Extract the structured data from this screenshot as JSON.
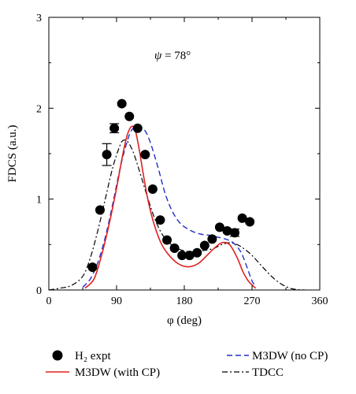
{
  "chart_data": {
    "type": "line",
    "xlabel": "φ (deg)",
    "ylabel": "FDCS (a.u.)",
    "xlim": [
      0,
      360
    ],
    "ylim": [
      0,
      3
    ],
    "xticks": [
      0,
      90,
      180,
      270,
      360
    ],
    "yticks": [
      0,
      1,
      2,
      3
    ],
    "xtick_labels": [
      "0",
      "90",
      "180",
      "270",
      "360"
    ],
    "ytick_labels": [
      "0",
      "1",
      "2",
      "3"
    ],
    "grid": false,
    "annotation": {
      "symbol": "ψ",
      "text": " = 78°",
      "x": 157,
      "y": 2.58
    },
    "legend_placement": "bottom",
    "points": {
      "name": "H₂ expt",
      "x": [
        58,
        68,
        77,
        87,
        97,
        107,
        118,
        128,
        138,
        148,
        157,
        167,
        177,
        187,
        197,
        207,
        217,
        227,
        237,
        247,
        257,
        267
      ],
      "y": [
        0.25,
        0.88,
        1.49,
        1.78,
        2.05,
        1.91,
        1.78,
        1.49,
        1.11,
        0.77,
        0.55,
        0.46,
        0.38,
        0.38,
        0.41,
        0.49,
        0.56,
        0.69,
        0.65,
        0.63,
        0.79,
        0.75
      ],
      "yerr": [
        0,
        0,
        0.12,
        0.05,
        0,
        0,
        0,
        0,
        0,
        0,
        0,
        0,
        0,
        0,
        0,
        0,
        0,
        0,
        0,
        0.04,
        0,
        0
      ],
      "color": "#000000"
    },
    "series": [
      {
        "name": "M3DW (with CP)",
        "style": "solid",
        "color": "#e02020",
        "x": [
          48,
          60,
          70,
          80,
          90,
          98,
          104,
          110,
          115,
          120,
          126,
          132,
          140,
          150,
          160,
          170,
          180,
          190,
          200,
          210,
          220,
          230,
          240,
          250,
          258,
          265,
          272,
          275
        ],
        "y": [
          0.02,
          0.12,
          0.38,
          0.72,
          1.12,
          1.48,
          1.7,
          1.8,
          1.75,
          1.55,
          1.25,
          0.98,
          0.72,
          0.5,
          0.38,
          0.3,
          0.26,
          0.26,
          0.3,
          0.38,
          0.46,
          0.52,
          0.5,
          0.36,
          0.2,
          0.1,
          0.04,
          0.02
        ]
      },
      {
        "name": "M3DW (no CP)",
        "style": "dashed",
        "color": "#2030c8",
        "x": [
          45,
          55,
          65,
          75,
          85,
          95,
          105,
          112,
          120,
          128,
          135,
          145,
          155,
          165,
          175,
          185,
          195,
          205,
          215,
          225,
          235,
          245,
          255,
          262,
          270,
          275
        ],
        "y": [
          0.03,
          0.12,
          0.3,
          0.58,
          0.95,
          1.35,
          1.66,
          1.78,
          1.8,
          1.75,
          1.62,
          1.35,
          1.05,
          0.85,
          0.73,
          0.67,
          0.63,
          0.61,
          0.6,
          0.58,
          0.56,
          0.52,
          0.42,
          0.28,
          0.1,
          0.04
        ]
      },
      {
        "name": "TDCC",
        "style": "dashdot",
        "color": "#000000",
        "x": [
          0,
          15,
          30,
          45,
          55,
          65,
          75,
          85,
          95,
          100,
          105,
          112,
          120,
          130,
          140,
          150,
          160,
          170,
          180,
          190,
          200,
          210,
          220,
          230,
          240,
          250,
          260,
          270,
          280,
          290,
          300,
          310,
          320,
          330,
          340
        ],
        "y": [
          0.0,
          0.02,
          0.05,
          0.15,
          0.35,
          0.65,
          1.0,
          1.35,
          1.6,
          1.65,
          1.63,
          1.52,
          1.32,
          1.05,
          0.8,
          0.62,
          0.52,
          0.46,
          0.43,
          0.42,
          0.43,
          0.44,
          0.46,
          0.5,
          0.52,
          0.5,
          0.45,
          0.38,
          0.29,
          0.2,
          0.12,
          0.06,
          0.02,
          0.005,
          0.0
        ]
      }
    ]
  }
}
